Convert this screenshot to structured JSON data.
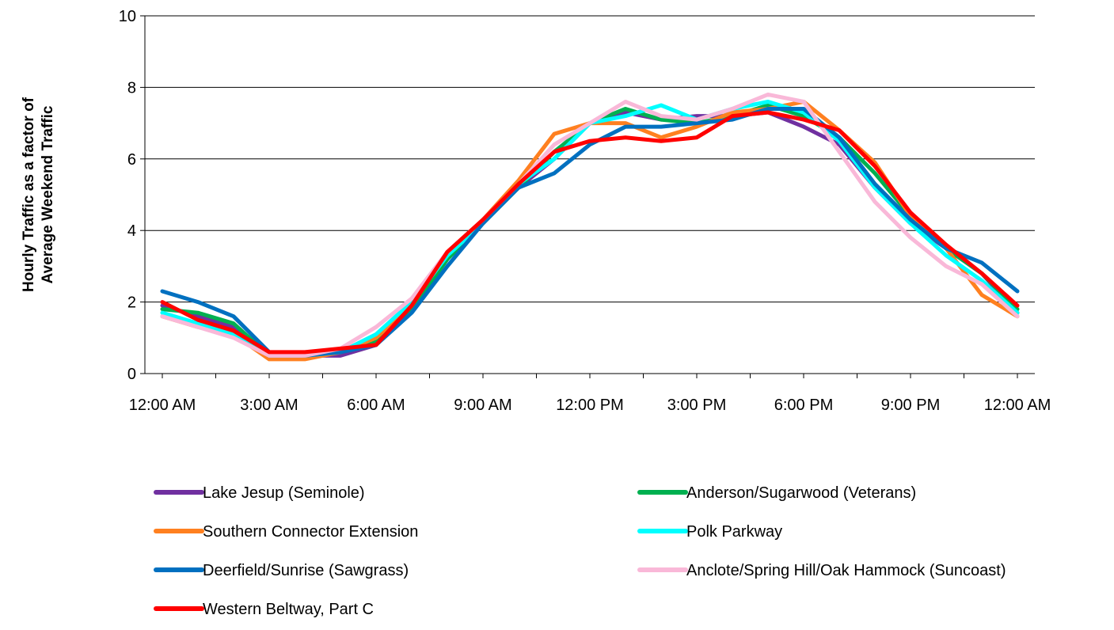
{
  "chart_data": {
    "type": "line",
    "ylabel_line1": "Hourly Traffic as a factor of",
    "ylabel_line2": "Average Weekend Traffic",
    "ylim": [
      0,
      10
    ],
    "y_ticks": [
      0,
      2,
      4,
      6,
      8,
      10
    ],
    "x_tick_labels": [
      "12:00 AM",
      "3:00 AM",
      "6:00 AM",
      "9:00 AM",
      "12:00 PM",
      "3:00 PM",
      "6:00 PM",
      "9:00 PM",
      "12:00 AM"
    ],
    "x_hours": [
      0,
      1,
      2,
      3,
      4,
      5,
      6,
      7,
      8,
      9,
      10,
      11,
      12,
      13,
      14,
      15,
      16,
      17,
      18,
      19,
      20,
      21,
      22,
      23,
      24
    ],
    "grid": "horizontal",
    "legend_position": "bottom",
    "series": [
      {
        "name": "Lake Jesup (Seminole)",
        "color": "#7030A0",
        "values": [
          1.9,
          1.6,
          1.3,
          0.5,
          0.5,
          0.5,
          0.8,
          1.8,
          3.2,
          4.3,
          5.2,
          6.0,
          7.0,
          7.3,
          7.1,
          7.2,
          7.2,
          7.3,
          6.9,
          6.4,
          5.2,
          4.2,
          3.5,
          2.8,
          1.7
        ]
      },
      {
        "name": "Anderson/Sugarwood (Veterans)",
        "color": "#00B050",
        "values": [
          1.8,
          1.7,
          1.4,
          0.5,
          0.5,
          0.6,
          0.9,
          1.8,
          3.2,
          4.2,
          5.2,
          6.2,
          7.0,
          7.4,
          7.1,
          7.0,
          7.2,
          7.5,
          7.2,
          6.6,
          5.6,
          4.4,
          3.5,
          2.8,
          1.8
        ]
      },
      {
        "name": "Southern Connector Extension",
        "color": "#FF8020",
        "values": [
          1.6,
          1.3,
          1.1,
          0.4,
          0.4,
          0.6,
          1.0,
          1.9,
          3.4,
          4.3,
          5.4,
          6.7,
          7.0,
          7.0,
          6.6,
          6.9,
          7.3,
          7.4,
          7.6,
          6.8,
          5.9,
          4.4,
          3.5,
          2.2,
          1.6
        ]
      },
      {
        "name": "Polk Parkway",
        "color": "#00FFFF",
        "values": [
          1.7,
          1.4,
          1.1,
          0.5,
          0.5,
          0.6,
          1.1,
          2.0,
          3.3,
          4.2,
          5.3,
          6.0,
          7.0,
          7.2,
          7.5,
          7.1,
          7.4,
          7.6,
          7.3,
          6.5,
          5.2,
          4.2,
          3.3,
          2.6,
          1.7
        ]
      },
      {
        "name": "Deerfield/Sunrise (Sawgrass)",
        "color": "#0070C0",
        "values": [
          2.3,
          2.0,
          1.6,
          0.6,
          0.5,
          0.6,
          0.8,
          1.7,
          3.0,
          4.2,
          5.2,
          5.6,
          6.4,
          6.9,
          6.9,
          7.0,
          7.1,
          7.4,
          7.4,
          6.6,
          5.3,
          4.3,
          3.5,
          3.1,
          2.3
        ]
      },
      {
        "name": "Anclote/Spring Hill/Oak Hammock (Suncoast)",
        "color": "#F9B8D8",
        "values": [
          1.6,
          1.3,
          1.0,
          0.5,
          0.5,
          0.7,
          1.3,
          2.1,
          3.4,
          4.3,
          5.3,
          6.4,
          7.0,
          7.6,
          7.2,
          7.1,
          7.4,
          7.8,
          7.6,
          6.2,
          4.8,
          3.8,
          3.0,
          2.5,
          1.6
        ]
      },
      {
        "name": "Western Beltway, Part C",
        "color": "#FF0000",
        "values": [
          2.0,
          1.5,
          1.2,
          0.6,
          0.6,
          0.7,
          0.8,
          1.9,
          3.4,
          4.3,
          5.3,
          6.2,
          6.5,
          6.6,
          6.5,
          6.6,
          7.2,
          7.3,
          7.1,
          6.8,
          5.8,
          4.5,
          3.6,
          2.8,
          1.9
        ]
      }
    ]
  }
}
